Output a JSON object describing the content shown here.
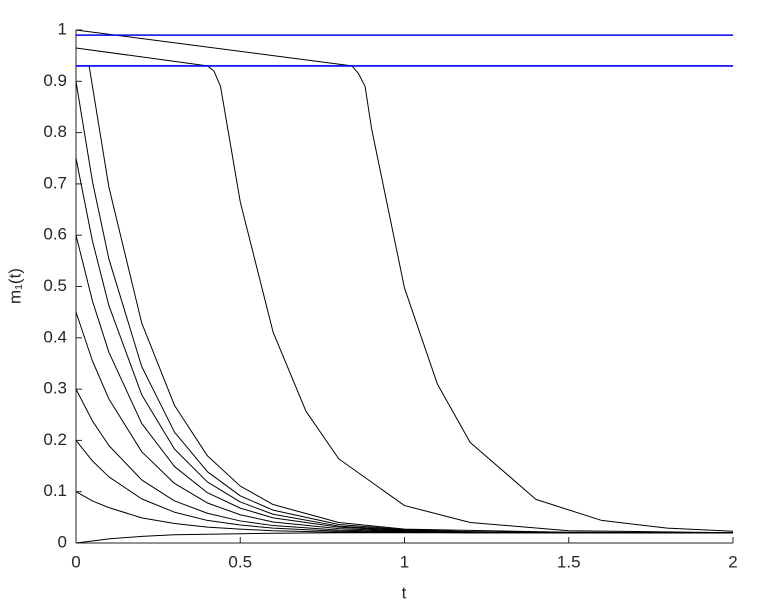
{
  "chart_data": {
    "type": "line",
    "xlabel": "t",
    "ylabel": "m₁(t)",
    "xlim": [
      0,
      2
    ],
    "ylim": [
      0,
      1
    ],
    "xticks": [
      0,
      0.5,
      1,
      1.5,
      2
    ],
    "yticks": [
      0,
      0.1,
      0.2,
      0.3,
      0.4,
      0.5,
      0.6,
      0.7,
      0.8,
      0.9,
      1
    ],
    "series": [
      {
        "color": "#000000",
        "x": [
          0,
          0.05,
          0.1,
          0.2,
          0.3,
          0.4,
          0.5,
          0.6,
          0.8,
          1,
          1.2,
          1.5,
          2
        ],
        "values": [
          0.9,
          0.705,
          0.554,
          0.344,
          0.216,
          0.139,
          0.092,
          0.064,
          0.036,
          0.026,
          0.022,
          0.02,
          0.02
        ]
      },
      {
        "color": "#000000",
        "x": [
          0,
          0.05,
          0.1,
          0.2,
          0.3,
          0.4,
          0.5,
          0.6,
          0.8,
          1,
          1.2,
          1.5,
          2
        ],
        "values": [
          0.75,
          0.589,
          0.463,
          0.289,
          0.183,
          0.119,
          0.08,
          0.056,
          0.033,
          0.025,
          0.022,
          0.02,
          0.02
        ]
      },
      {
        "color": "#000000",
        "x": [
          0,
          0.05,
          0.1,
          0.2,
          0.3,
          0.4,
          0.5,
          0.6,
          0.8,
          1,
          1.2,
          1.5,
          2
        ],
        "values": [
          0.6,
          0.472,
          0.372,
          0.233,
          0.149,
          0.098,
          0.068,
          0.049,
          0.031,
          0.024,
          0.021,
          0.02,
          0.02
        ]
      },
      {
        "color": "#000000",
        "x": [
          0,
          0.05,
          0.1,
          0.2,
          0.3,
          0.4,
          0.5,
          0.6,
          0.8,
          1,
          1.2,
          1.5,
          2
        ],
        "values": [
          0.45,
          0.355,
          0.281,
          0.178,
          0.116,
          0.078,
          0.055,
          0.041,
          0.028,
          0.023,
          0.021,
          0.02,
          0.02
        ]
      },
      {
        "color": "#000000",
        "x": [
          0,
          0.05,
          0.1,
          0.2,
          0.3,
          0.4,
          0.5,
          0.6,
          0.8,
          1,
          1.2,
          1.5,
          2
        ],
        "values": [
          0.3,
          0.238,
          0.19,
          0.123,
          0.082,
          0.058,
          0.043,
          0.034,
          0.025,
          0.022,
          0.021,
          0.02,
          0.02
        ]
      },
      {
        "color": "#000000",
        "x": [
          0,
          0.05,
          0.1,
          0.2,
          0.3,
          0.4,
          0.5,
          0.6,
          0.8,
          1,
          1.2,
          1.5,
          2
        ],
        "values": [
          0.2,
          0.16,
          0.129,
          0.086,
          0.06,
          0.044,
          0.035,
          0.029,
          0.023,
          0.021,
          0.02,
          0.02,
          0.02
        ]
      },
      {
        "color": "#000000",
        "x": [
          0,
          0.05,
          0.1,
          0.2,
          0.3,
          0.4,
          0.5,
          0.6,
          0.8,
          1,
          1.2,
          1.5,
          2
        ],
        "values": [
          0.1,
          0.082,
          0.069,
          0.049,
          0.038,
          0.031,
          0.027,
          0.024,
          0.021,
          0.021,
          0.02,
          0.02,
          0.02
        ]
      },
      {
        "color": "#000000",
        "x": [
          0,
          0.05,
          0.1,
          0.2,
          0.3,
          0.4,
          0.5,
          0.6,
          0.8,
          1,
          1.2,
          1.5,
          2
        ],
        "values": [
          0,
          0.004,
          0.008,
          0.013,
          0.016,
          0.017,
          0.018,
          0.019,
          0.02,
          0.02,
          0.02,
          0.02,
          0.02
        ]
      },
      {
        "color": "#000000",
        "x": [
          0,
          0.04,
          0.1,
          0.2,
          0.3,
          0.4,
          0.5,
          0.6,
          0.8,
          1,
          1.5,
          2
        ],
        "values": [
          0.93,
          0.93,
          0.694,
          0.429,
          0.268,
          0.17,
          0.111,
          0.075,
          0.04,
          0.027,
          0.021,
          0.02
        ]
      },
      {
        "color": "#000000",
        "x": [
          0,
          0.4,
          0.42,
          0.44,
          0.5,
          0.6,
          0.7,
          0.8,
          1,
          1.2,
          1.5,
          2
        ],
        "values": [
          0.965,
          0.93,
          0.92,
          0.89,
          0.665,
          0.411,
          0.257,
          0.164,
          0.073,
          0.04,
          0.024,
          0.02
        ]
      },
      {
        "color": "#000000",
        "x": [
          0,
          0.84,
          0.86,
          0.88,
          0.9,
          1,
          1.1,
          1.2,
          1.4,
          1.6,
          1.8,
          2
        ],
        "values": [
          1,
          0.93,
          0.915,
          0.89,
          0.807,
          0.497,
          0.31,
          0.196,
          0.085,
          0.044,
          0.029,
          0.023
        ]
      },
      {
        "color": "#0000ff",
        "x": [
          0,
          2
        ],
        "values": [
          0.99,
          0.99
        ]
      },
      {
        "color": "#0000ff",
        "x": [
          0,
          2
        ],
        "values": [
          0.93,
          0.93
        ]
      }
    ]
  }
}
